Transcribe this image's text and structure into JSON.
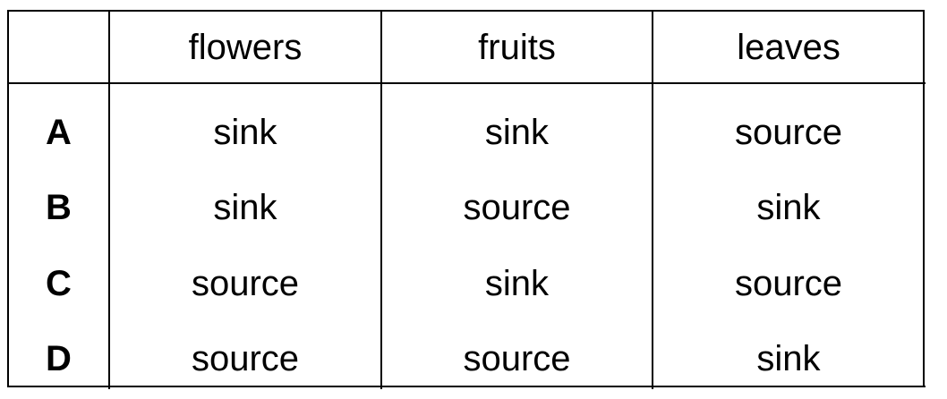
{
  "table": {
    "columns": [
      "",
      "flowers",
      "fruits",
      "leaves"
    ],
    "rows": [
      {
        "label": "A",
        "cells": [
          "sink",
          "sink",
          "source"
        ]
      },
      {
        "label": "B",
        "cells": [
          "sink",
          "source",
          "sink"
        ]
      },
      {
        "label": "C",
        "cells": [
          "source",
          "sink",
          "source"
        ]
      },
      {
        "label": "D",
        "cells": [
          "source",
          "source",
          "sink"
        ]
      }
    ]
  }
}
